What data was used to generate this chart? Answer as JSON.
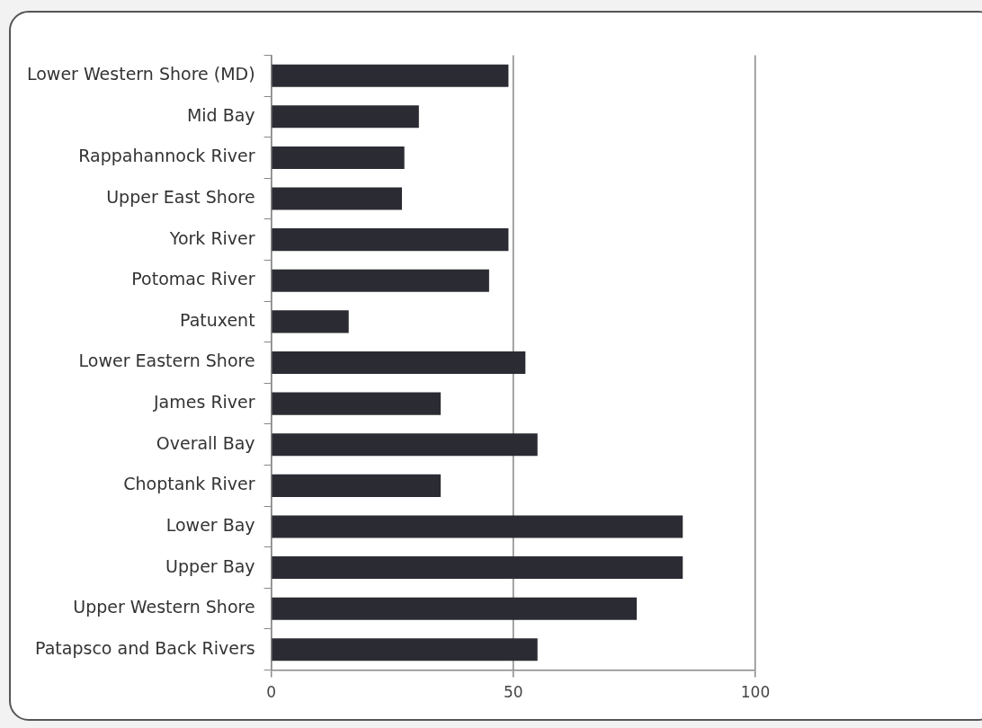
{
  "chart_data": {
    "type": "bar",
    "orientation": "horizontal",
    "categories": [
      "Lower Western Shore (MD)",
      "Mid Bay",
      "Rappahannock River",
      "Upper East Shore",
      "York River",
      "Potomac River",
      "Patuxent",
      "Lower Eastern Shore",
      "James River",
      "Overall Bay",
      "Choptank River",
      "Lower Bay",
      "Upper Bay",
      "Upper Western Shore",
      "Patapsco and Back Rivers"
    ],
    "values": [
      49,
      30.5,
      27.5,
      27,
      49,
      45,
      16,
      52.5,
      35,
      55,
      35,
      85,
      85,
      75.5,
      55
    ],
    "color": "#2b2c33",
    "xlim": [
      0,
      100
    ],
    "xticks": [
      0,
      50,
      100
    ],
    "grid": "x"
  }
}
